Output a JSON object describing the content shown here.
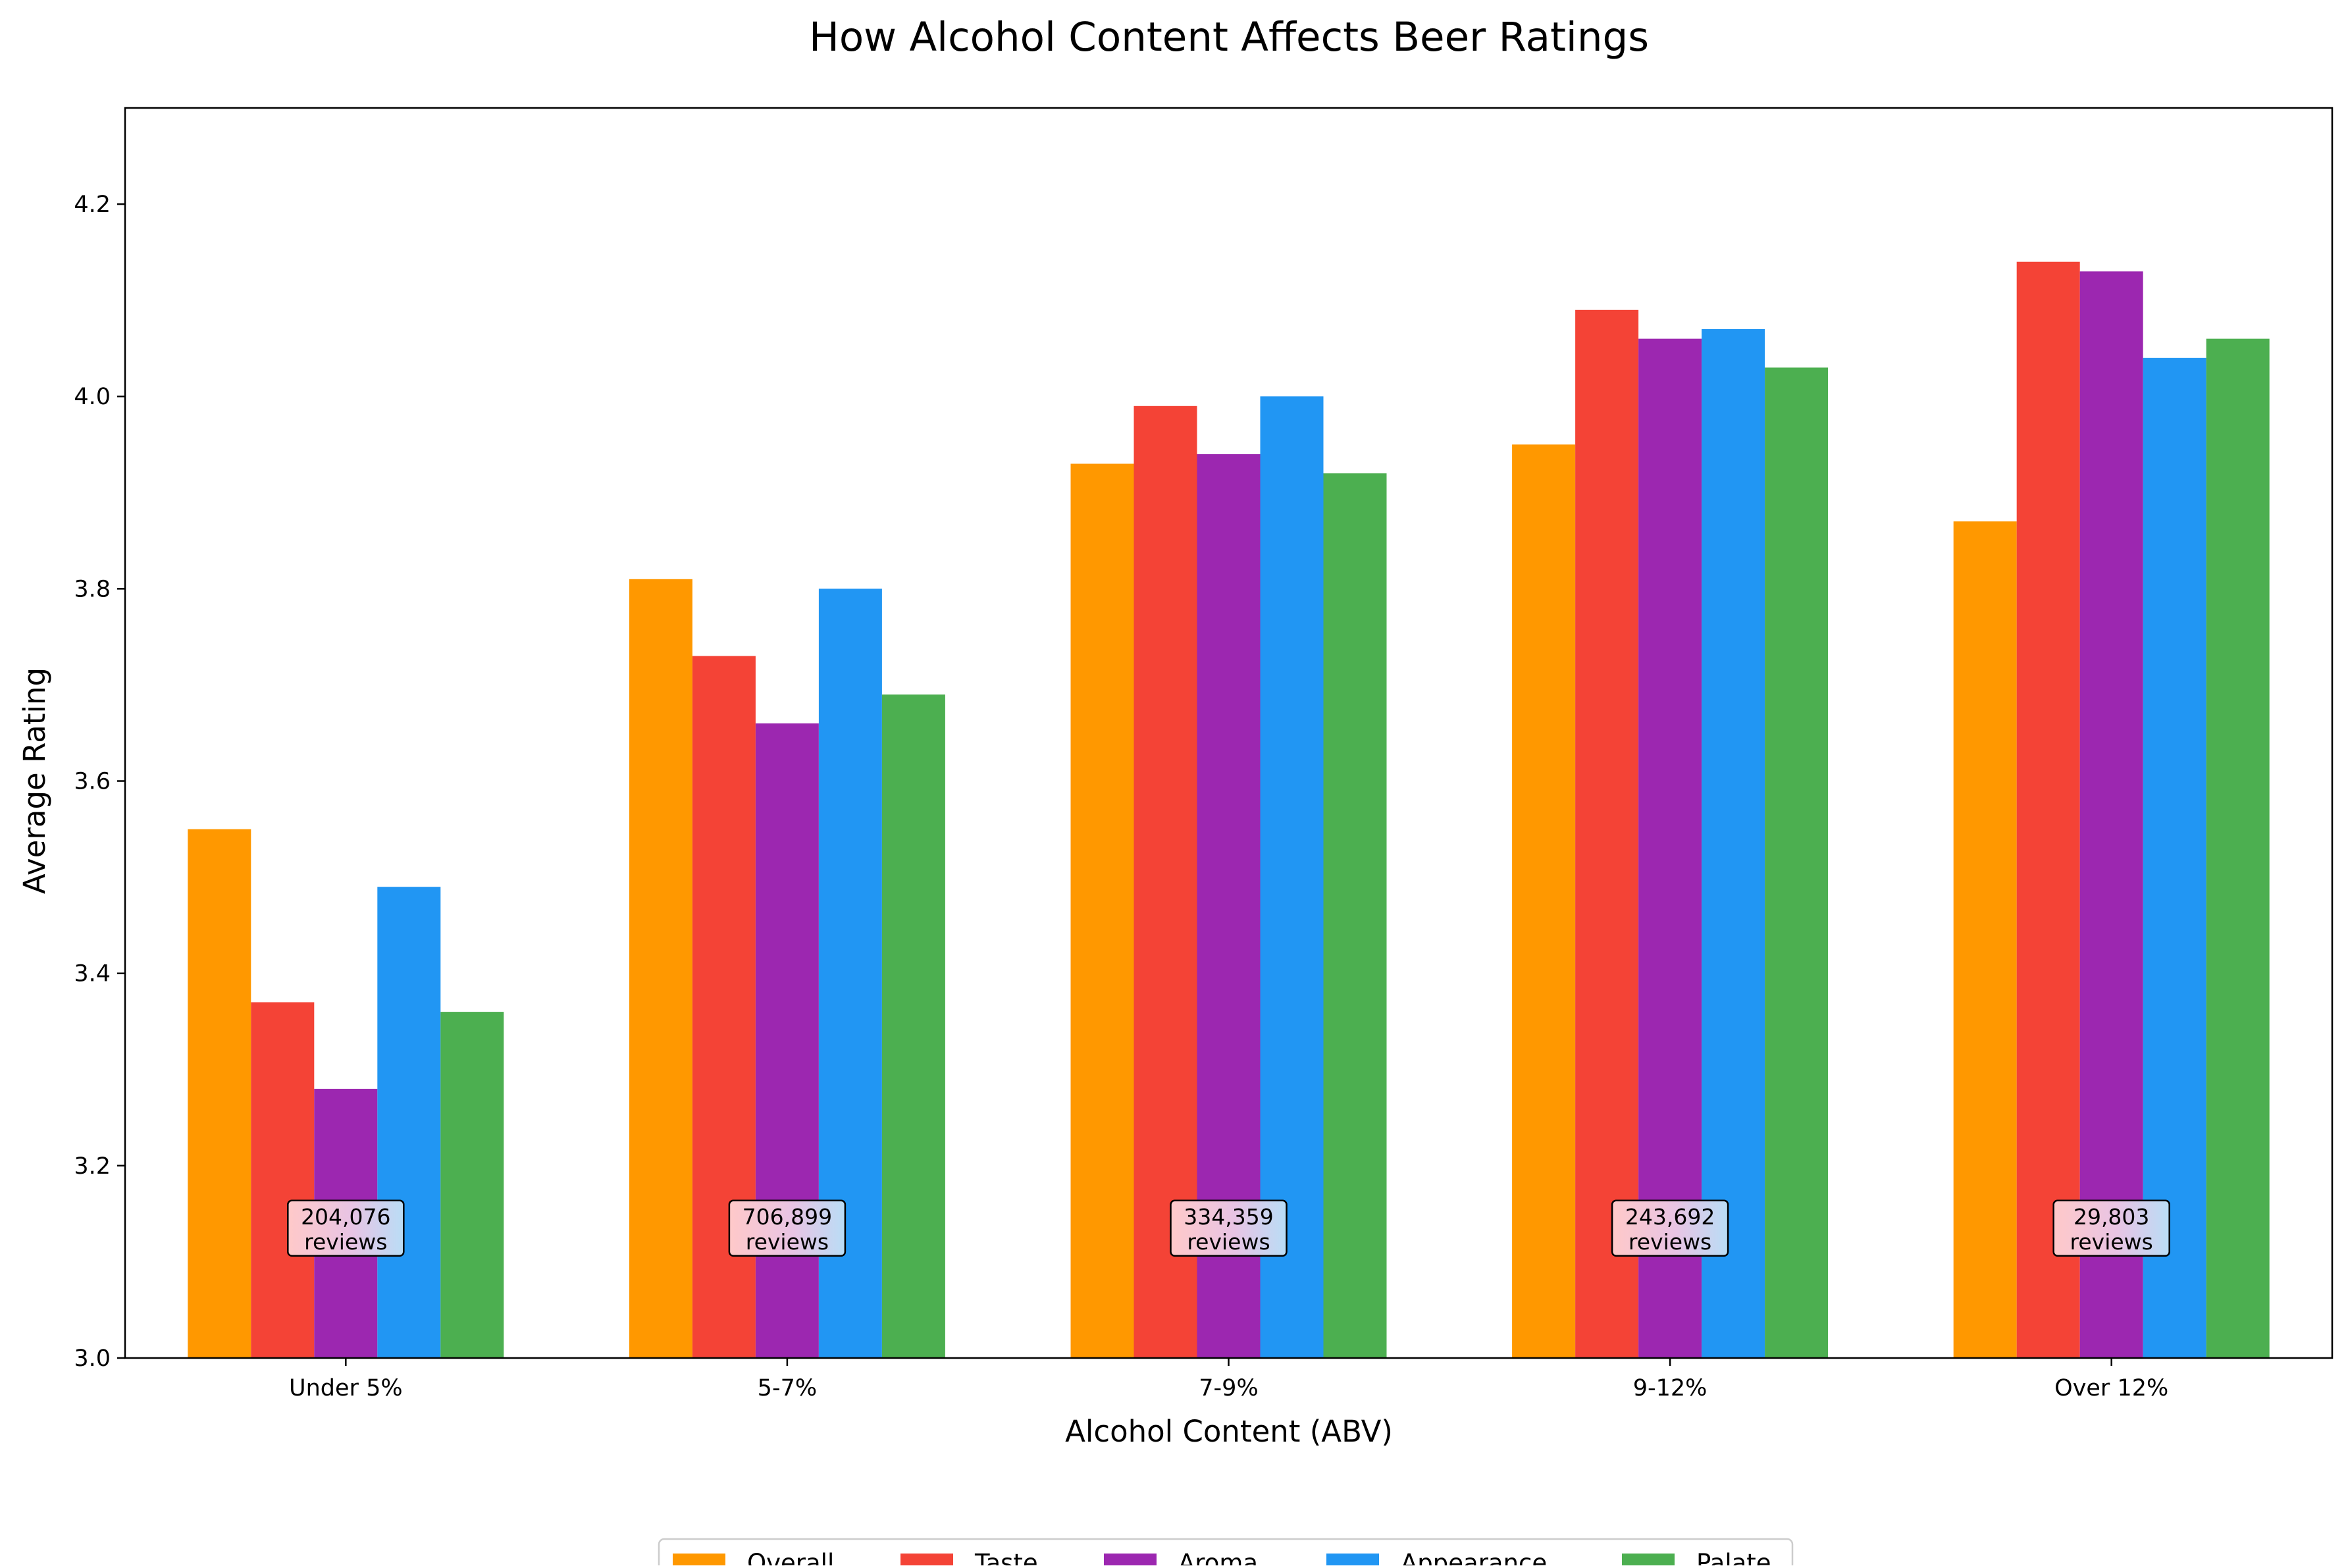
{
  "chart_data": {
    "type": "bar",
    "title": "How Alcohol Content Affects Beer Ratings",
    "xlabel": "Alcohol Content (ABV)",
    "ylabel": "Average Rating",
    "ylim": [
      3.0,
      4.3
    ],
    "yticks": [
      3.0,
      3.2,
      3.4,
      3.6,
      3.8,
      4.0,
      4.2
    ],
    "ytick_labels": [
      "3.0",
      "3.2",
      "3.4",
      "3.6",
      "3.8",
      "4.0",
      "4.2"
    ],
    "categories": [
      "Under 5%",
      "5-7%",
      "7-9%",
      "9-12%",
      "Over 12%"
    ],
    "series": [
      {
        "name": "Overall",
        "color": "#FF9800",
        "values": [
          3.55,
          3.81,
          3.93,
          3.95,
          3.87
        ]
      },
      {
        "name": "Taste",
        "color": "#F44336",
        "values": [
          3.37,
          3.73,
          3.99,
          4.09,
          4.14
        ]
      },
      {
        "name": "Aroma",
        "color": "#9C27B0",
        "values": [
          3.28,
          3.66,
          3.94,
          4.06,
          4.13
        ]
      },
      {
        "name": "Appearance",
        "color": "#2196F3",
        "values": [
          3.49,
          3.8,
          4.0,
          4.07,
          4.04
        ]
      },
      {
        "name": "Palate",
        "color": "#4CAF50",
        "values": [
          3.36,
          3.69,
          3.92,
          4.03,
          4.06
        ]
      }
    ],
    "annotations": [
      {
        "category": "Under 5%",
        "count": "204,076",
        "suffix": "reviews",
        "y": 3.135
      },
      {
        "category": "5-7%",
        "count": "706,899",
        "suffix": "reviews",
        "y": 3.135
      },
      {
        "category": "7-9%",
        "count": "334,359",
        "suffix": "reviews",
        "y": 3.135
      },
      {
        "category": "9-12%",
        "count": "243,692",
        "suffix": "reviews",
        "y": 3.135
      },
      {
        "category": "Over 12%",
        "count": "29,803",
        "suffix": "reviews",
        "y": 3.135
      }
    ],
    "legend": {
      "placement": "bottom-center",
      "ncol": 5
    },
    "grid": false
  }
}
